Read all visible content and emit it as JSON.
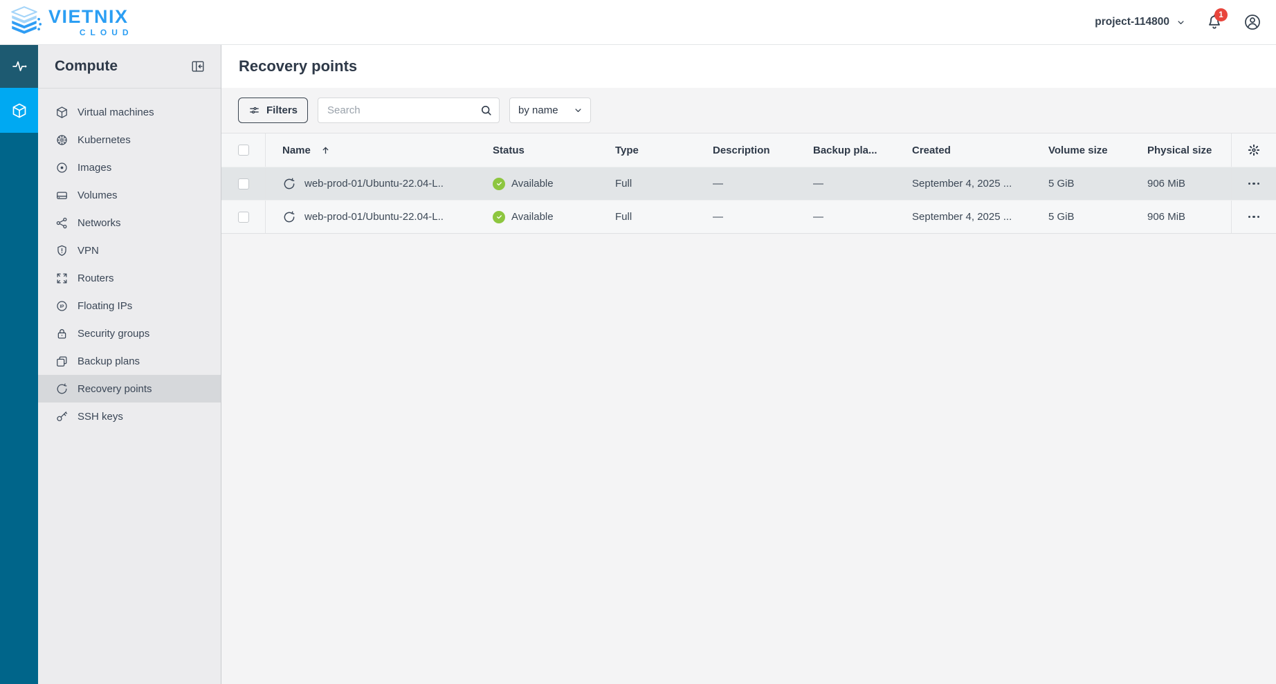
{
  "brand": {
    "name": "VIETNIX",
    "sub": "CLOUD"
  },
  "header": {
    "project_label": "project-114800",
    "notification_count": "1"
  },
  "sidebar": {
    "title": "Compute",
    "rail": [
      {
        "icon": "activity",
        "active": false
      },
      {
        "icon": "cube",
        "active": true
      }
    ],
    "items": [
      {
        "label": "Virtual machines",
        "icon": "vm",
        "active": false
      },
      {
        "label": "Kubernetes",
        "icon": "kubernetes",
        "active": false
      },
      {
        "label": "Images",
        "icon": "images",
        "active": false
      },
      {
        "label": "Volumes",
        "icon": "volumes",
        "active": false
      },
      {
        "label": "Networks",
        "icon": "networks",
        "active": false
      },
      {
        "label": "VPN",
        "icon": "vpn",
        "active": false
      },
      {
        "label": "Routers",
        "icon": "routers",
        "active": false
      },
      {
        "label": "Floating IPs",
        "icon": "floating-ips",
        "active": false
      },
      {
        "label": "Security groups",
        "icon": "security-groups",
        "active": false
      },
      {
        "label": "Backup plans",
        "icon": "backup-plans",
        "active": false
      },
      {
        "label": "Recovery points",
        "icon": "recovery-points",
        "active": true
      },
      {
        "label": "SSH keys",
        "icon": "ssh-keys",
        "active": false
      }
    ]
  },
  "page": {
    "title": "Recovery points"
  },
  "toolbar": {
    "filters_label": "Filters",
    "search_placeholder": "Search",
    "sort_value": "by name"
  },
  "table": {
    "columns": [
      {
        "key": "name",
        "label": "Name",
        "sorted": "asc"
      },
      {
        "key": "status",
        "label": "Status"
      },
      {
        "key": "type",
        "label": "Type"
      },
      {
        "key": "description",
        "label": "Description"
      },
      {
        "key": "backup_plan",
        "label": "Backup pla..."
      },
      {
        "key": "created",
        "label": "Created"
      },
      {
        "key": "volume_size",
        "label": "Volume size"
      },
      {
        "key": "physical_size",
        "label": "Physical size"
      }
    ],
    "rows": [
      {
        "name": "web-prod-01/Ubuntu-22.04-L..",
        "status": "Available",
        "type": "Full",
        "description": "—",
        "backup_plan": "—",
        "created": "September 4, 2025 ...",
        "volume_size": "5 GiB",
        "physical_size": "906 MiB",
        "highlighted": true
      },
      {
        "name": "web-prod-01/Ubuntu-22.04-L..",
        "status": "Available",
        "type": "Full",
        "description": "—",
        "backup_plan": "—",
        "created": "September 4, 2025 ...",
        "volume_size": "5 GiB",
        "physical_size": "906 MiB",
        "highlighted": false
      }
    ]
  },
  "colors": {
    "brand_blue": "#2b9ef3",
    "rail_teal": "#00658a",
    "rail_dark": "#1d5a71",
    "rail_active": "#00a9f2",
    "status_green": "#8dc63f",
    "badge_red": "#e8453c"
  }
}
